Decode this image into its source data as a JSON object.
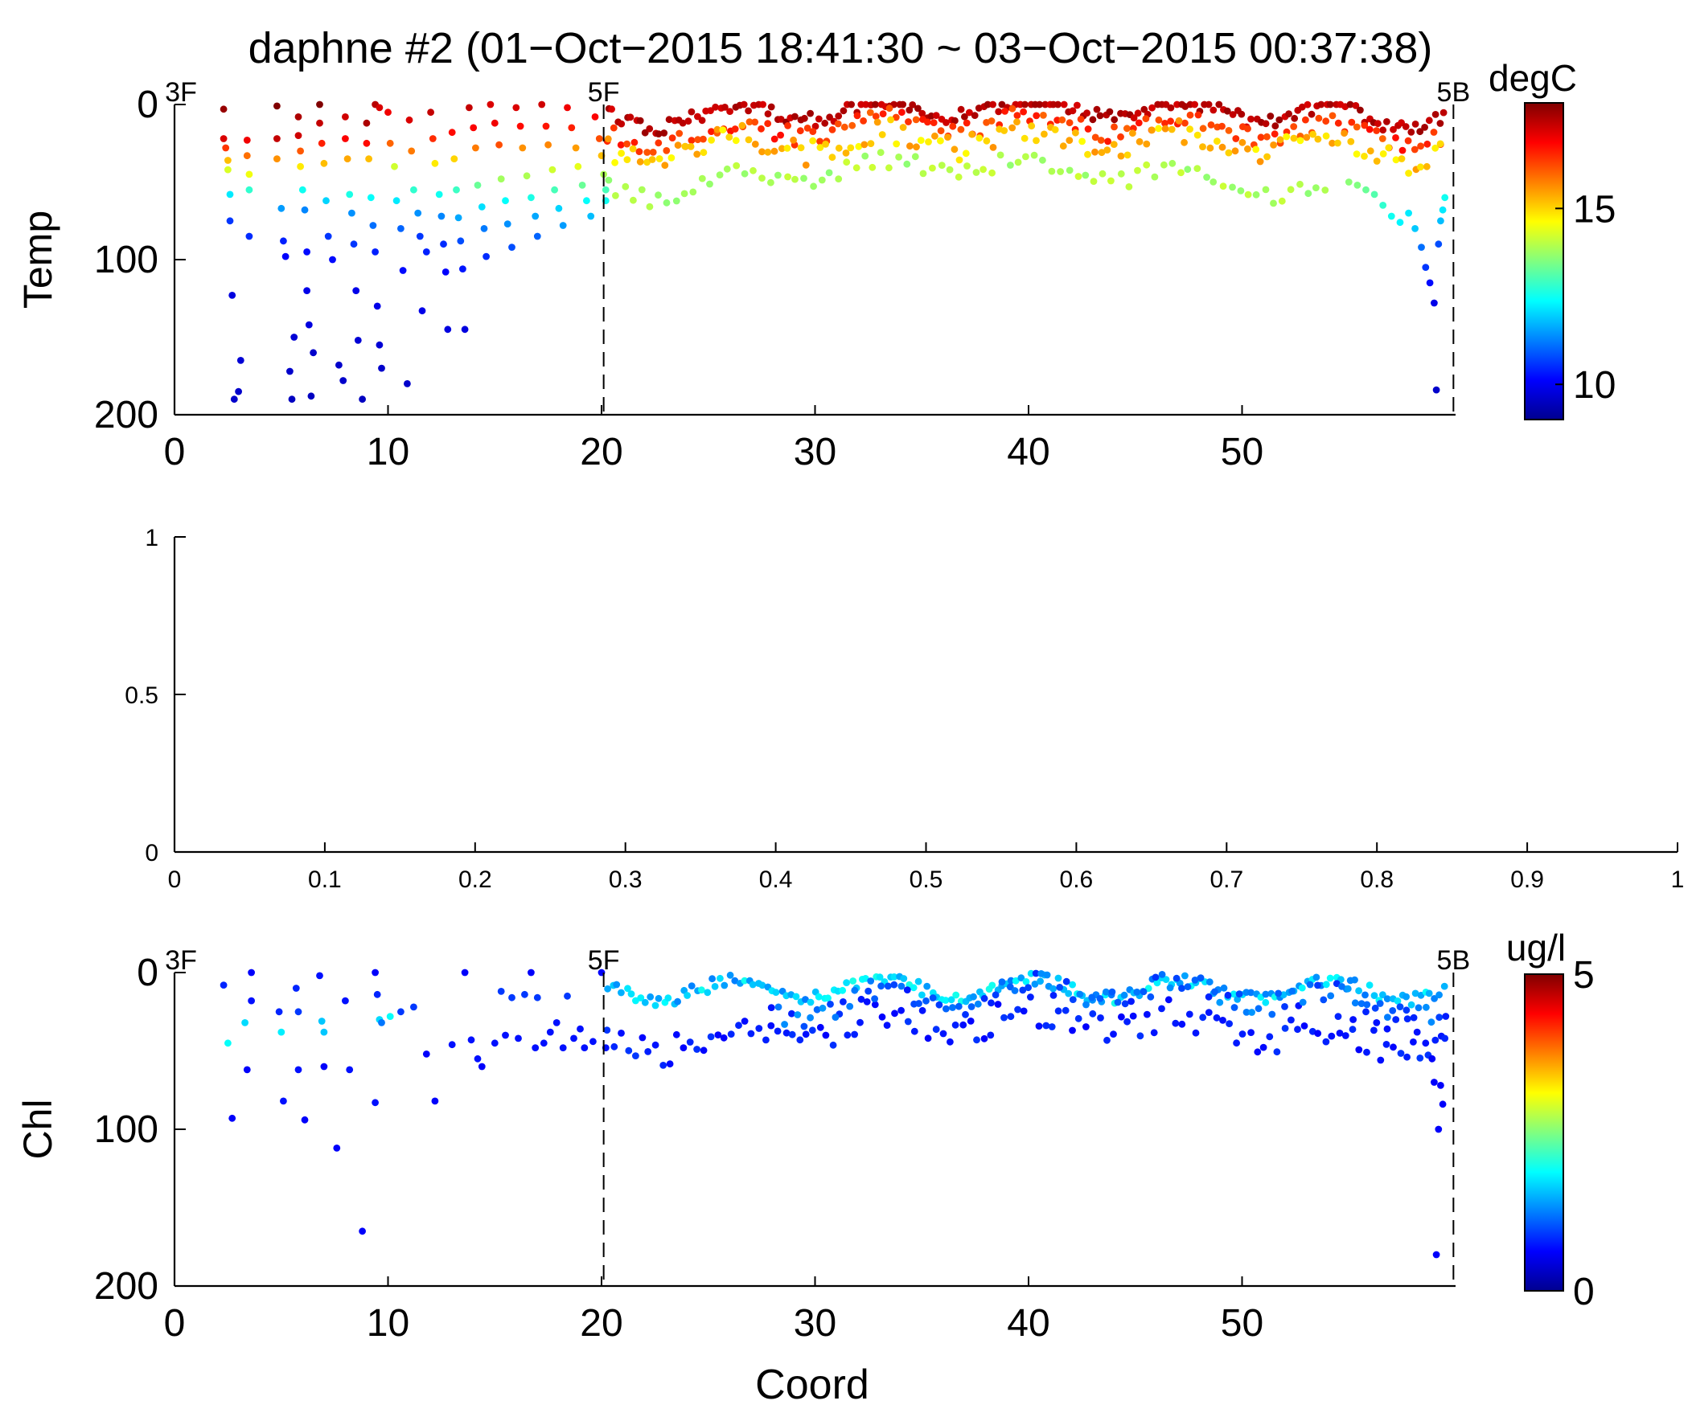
{
  "figure": {
    "title": "daphne #2 (01−Oct−2015 18:41:30 ~ 03−Oct−2015 00:37:38)"
  },
  "colormap": [
    "#00008f",
    "#0000ff",
    "#0080ff",
    "#00ffff",
    "#80ff80",
    "#ffff00",
    "#ff8000",
    "#ff0000",
    "#800000"
  ],
  "chart_data": [
    {
      "type": "scatter",
      "ylabel": "Temp",
      "xlabel": "",
      "xlim": [
        0,
        60
      ],
      "ylim": [
        200,
        0
      ],
      "xticks": [
        0,
        10,
        20,
        30,
        40,
        50
      ],
      "yticks": [
        0,
        100,
        200
      ],
      "colorbar": {
        "unit": "degC",
        "range": [
          9,
          18
        ],
        "ticks": [
          10,
          15
        ]
      },
      "stations": [
        {
          "label": "3F",
          "x": 0
        },
        {
          "label": "5F",
          "x": 20.1
        },
        {
          "label": "5B",
          "x": 59.9
        }
      ],
      "scatter_note": "points: x = Coord, y = depth; colour = temperature (degC)",
      "points": [
        [
          2.3,
          3,
          17.8
        ],
        [
          2.3,
          22,
          17.2
        ],
        [
          2.4,
          28,
          16.4
        ],
        [
          2.5,
          36,
          15.2
        ],
        [
          2.5,
          42,
          14.3
        ],
        [
          2.6,
          58,
          12.2
        ],
        [
          2.6,
          75,
          10.6
        ],
        [
          2.7,
          123,
          9.8
        ],
        [
          2.8,
          190,
          9.6
        ],
        [
          3.0,
          185,
          9.6
        ],
        [
          3.1,
          165,
          9.7
        ],
        [
          3.4,
          23,
          17.0
        ],
        [
          3.4,
          33,
          15.9
        ],
        [
          3.5,
          45,
          14.5
        ],
        [
          3.5,
          55,
          12.8
        ],
        [
          3.5,
          85,
          10.5
        ],
        [
          4.8,
          1,
          18.0
        ],
        [
          4.8,
          22,
          17.4
        ],
        [
          4.8,
          35,
          15.6
        ],
        [
          5.0,
          67,
          11.5
        ],
        [
          5.1,
          88,
          10.4
        ],
        [
          5.2,
          98,
          10.1
        ],
        [
          5.4,
          172,
          9.6
        ],
        [
          5.5,
          190,
          9.5
        ],
        [
          5.6,
          150,
          9.7
        ],
        [
          5.8,
          8,
          17.6
        ],
        [
          5.8,
          20,
          17.3
        ],
        [
          5.9,
          30,
          16.1
        ],
        [
          5.9,
          40,
          14.8
        ],
        [
          6.0,
          55,
          12.5
        ],
        [
          6.1,
          68,
          11.3
        ],
        [
          6.2,
          95,
          10.2
        ],
        [
          6.2,
          120,
          9.9
        ],
        [
          6.3,
          142,
          9.8
        ],
        [
          6.4,
          188,
          9.5
        ],
        [
          6.5,
          160,
          9.6
        ],
        [
          6.8,
          -2,
          18.1
        ],
        [
          6.8,
          12,
          17.4
        ],
        [
          6.9,
          25,
          16.6
        ],
        [
          7.0,
          38,
          15.2
        ],
        [
          7.1,
          62,
          12.0
        ],
        [
          7.2,
          85,
          10.6
        ],
        [
          7.4,
          100,
          10.2
        ],
        [
          7.7,
          168,
          9.6
        ],
        [
          7.9,
          178,
          9.6
        ],
        [
          8.0,
          8,
          17.3
        ],
        [
          8.0,
          22,
          16.9
        ],
        [
          8.1,
          35,
          15.4
        ],
        [
          8.2,
          58,
          12.6
        ],
        [
          8.3,
          70,
          11.4
        ],
        [
          8.4,
          90,
          10.6
        ],
        [
          8.5,
          120,
          9.9
        ],
        [
          8.6,
          152,
          9.7
        ],
        [
          8.8,
          190,
          9.5
        ],
        [
          9.0,
          12,
          17.6
        ],
        [
          9.0,
          25,
          16.8
        ],
        [
          9.1,
          35,
          15.2
        ],
        [
          9.2,
          60,
          12.4
        ],
        [
          9.3,
          78,
          11.1
        ],
        [
          9.4,
          95,
          10.4
        ],
        [
          9.5,
          130,
          9.9
        ],
        [
          9.6,
          155,
          9.7
        ],
        [
          9.7,
          170,
          9.6
        ],
        [
          9.4,
          -1,
          17.5
        ],
        [
          9.6,
          2,
          17.2
        ],
        [
          10.0,
          5,
          17.0
        ],
        [
          10.1,
          25,
          16.0
        ],
        [
          10.3,
          40,
          14.2
        ],
        [
          10.4,
          62,
          12.2
        ],
        [
          10.6,
          80,
          11.0
        ],
        [
          10.7,
          107,
          10.2
        ],
        [
          10.9,
          180,
          9.6
        ],
        [
          11.0,
          10,
          17.2
        ],
        [
          11.1,
          30,
          15.8
        ],
        [
          11.2,
          55,
          12.8
        ],
        [
          11.4,
          70,
          11.4
        ],
        [
          11.5,
          85,
          10.6
        ],
        [
          11.6,
          133,
          9.9
        ],
        [
          11.8,
          95,
          10.4
        ],
        [
          12.0,
          5,
          17.4
        ],
        [
          12.1,
          22,
          16.5
        ],
        [
          12.2,
          38,
          14.8
        ],
        [
          12.4,
          58,
          12.5
        ],
        [
          12.5,
          72,
          11.3
        ],
        [
          12.6,
          90,
          10.5
        ],
        [
          12.7,
          108,
          10.1
        ],
        [
          12.8,
          145,
          9.8
        ],
        [
          13.0,
          18,
          16.8
        ],
        [
          13.1,
          35,
          15.0
        ],
        [
          13.2,
          55,
          12.9
        ],
        [
          13.3,
          73,
          11.6
        ],
        [
          13.4,
          88,
          10.8
        ],
        [
          13.5,
          106,
          10.3
        ],
        [
          13.6,
          145,
          9.8
        ],
        [
          13.8,
          2,
          17.4
        ],
        [
          14.0,
          15,
          16.9
        ],
        [
          14.1,
          28,
          15.8
        ],
        [
          14.2,
          52,
          13.3
        ],
        [
          14.4,
          66,
          12.1
        ],
        [
          14.5,
          80,
          11.2
        ],
        [
          14.6,
          98,
          10.5
        ],
        [
          14.8,
          0,
          17.2
        ],
        [
          15.0,
          12,
          17.0
        ],
        [
          15.2,
          26,
          16.2
        ],
        [
          15.3,
          48,
          13.8
        ],
        [
          15.5,
          62,
          12.4
        ],
        [
          15.6,
          77,
          11.4
        ],
        [
          15.8,
          92,
          10.8
        ],
        [
          16.0,
          2,
          17.2
        ],
        [
          16.2,
          14,
          16.8
        ],
        [
          16.3,
          28,
          15.6
        ],
        [
          16.5,
          46,
          13.9
        ],
        [
          16.7,
          60,
          12.6
        ],
        [
          16.9,
          72,
          11.6
        ],
        [
          17.0,
          85,
          11.0
        ],
        [
          17.2,
          0,
          17.3
        ],
        [
          17.4,
          14,
          16.7
        ],
        [
          17.5,
          26,
          15.7
        ],
        [
          17.7,
          42,
          14.2
        ],
        [
          17.8,
          55,
          13.0
        ],
        [
          18.0,
          67,
          12.0
        ],
        [
          18.2,
          78,
          11.5
        ],
        [
          18.4,
          2,
          17.0
        ],
        [
          18.6,
          15,
          16.6
        ],
        [
          18.8,
          28,
          15.5
        ],
        [
          18.9,
          40,
          14.4
        ],
        [
          19.1,
          52,
          13.3
        ],
        [
          19.3,
          62,
          12.4
        ],
        [
          19.5,
          72,
          11.8
        ],
        [
          19.7,
          8,
          16.9
        ],
        [
          19.9,
          22,
          16.2
        ],
        [
          20.0,
          33,
          15.2
        ],
        [
          20.1,
          45,
          13.9
        ],
        [
          20.2,
          55,
          13.0
        ],
        [
          20.2,
          62,
          12.5
        ]
      ],
      "bands": [
        {
          "from": 20.3,
          "to": 59.5,
          "depth": [
            10,
            2,
            14
          ],
          "value": [
            17.2,
            17.8
          ],
          "step": 0.22,
          "jitter": 5
        },
        {
          "from": 20.3,
          "to": 59.5,
          "depth": [
            22,
            12,
            24
          ],
          "value": [
            16.0,
            16.8
          ],
          "step": 0.3,
          "jitter": 6
        },
        {
          "from": 20.3,
          "to": 59.5,
          "depth": [
            32,
            22,
            30
          ],
          "value": [
            14.6,
            15.6
          ],
          "step": 0.3,
          "jitter": 8
        },
        {
          "from": 20.3,
          "to": 54.0,
          "depth": [
            58,
            40,
            40
          ],
          "value": [
            13.6,
            14.2
          ],
          "step": 0.4,
          "jitter": 6
        }
      ],
      "tail_points": [
        [
          55.0,
          50,
          13.6
        ],
        [
          55.4,
          52,
          13.5
        ],
        [
          55.8,
          55,
          13.3
        ],
        [
          56.2,
          58,
          13.1
        ],
        [
          56.6,
          65,
          12.8
        ],
        [
          57.0,
          72,
          12.5
        ],
        [
          57.4,
          76,
          12.3
        ],
        [
          57.8,
          70,
          12.2
        ],
        [
          58.1,
          80,
          11.9
        ],
        [
          58.4,
          92,
          11.1
        ],
        [
          58.6,
          105,
          10.6
        ],
        [
          58.8,
          115,
          10.2
        ],
        [
          59.0,
          128,
          9.9
        ],
        [
          59.1,
          184,
          9.6
        ],
        [
          59.2,
          90,
          10.8
        ],
        [
          59.3,
          75,
          11.8
        ],
        [
          59.4,
          68,
          12.2
        ],
        [
          59.5,
          60,
          12.5
        ]
      ]
    },
    {
      "type": "scatter",
      "xlim": [
        0,
        1
      ],
      "ylim": [
        0,
        1
      ],
      "xticks": [
        0,
        0.1,
        0.2,
        0.3,
        0.4,
        0.5,
        0.6,
        0.7,
        0.8,
        0.9,
        1
      ],
      "yticks": [
        0,
        0.5,
        1
      ],
      "points": []
    },
    {
      "type": "scatter",
      "ylabel": "Chl",
      "xlabel": "Coord",
      "xlim": [
        0,
        60
      ],
      "ylim": [
        200,
        0
      ],
      "xticks": [
        0,
        10,
        20,
        30,
        40,
        50
      ],
      "yticks": [
        0,
        100,
        200
      ],
      "colorbar": {
        "unit": "ug/l",
        "range": [
          0,
          5
        ],
        "ticks": [
          0,
          5
        ]
      },
      "stations": [
        {
          "label": "3F",
          "x": 0
        },
        {
          "label": "5F",
          "x": 20.1
        },
        {
          "label": "5B",
          "x": 59.9
        }
      ],
      "scatter_note": "points: x = Coord, y = depth; colour = chlorophyll (ug/l)",
      "points": [
        [
          2.3,
          8,
          0.8
        ],
        [
          2.5,
          45,
          1.9
        ],
        [
          2.7,
          93,
          0.6
        ],
        [
          3.3,
          32,
          1.7
        ],
        [
          3.4,
          62,
          0.6
        ],
        [
          3.6,
          18,
          0.7
        ],
        [
          3.6,
          0,
          0.6
        ],
        [
          4.9,
          25,
          0.8
        ],
        [
          5.0,
          38,
          1.8
        ],
        [
          5.1,
          82,
          0.7
        ],
        [
          5.7,
          10,
          0.8
        ],
        [
          5.8,
          25,
          0.9
        ],
        [
          5.8,
          62,
          0.7
        ],
        [
          6.1,
          94,
          0.6
        ],
        [
          6.8,
          2,
          0.7
        ],
        [
          6.9,
          31,
          1.6
        ],
        [
          7.0,
          38,
          1.6
        ],
        [
          7.0,
          60,
          0.6
        ],
        [
          7.6,
          112,
          0.6
        ],
        [
          8.0,
          18,
          0.7
        ],
        [
          8.2,
          62,
          0.7
        ],
        [
          8.8,
          165,
          0.6
        ],
        [
          9.4,
          0,
          0.6
        ],
        [
          9.5,
          14,
          0.8
        ],
        [
          9.6,
          30,
          1.7
        ],
        [
          9.7,
          32,
          1.2
        ],
        [
          9.4,
          83,
          0.7
        ],
        [
          10.1,
          28,
          1.9
        ],
        [
          10.6,
          25,
          0.9
        ],
        [
          11.2,
          22,
          0.9
        ],
        [
          11.8,
          52,
          0.6
        ],
        [
          12.2,
          82,
          0.6
        ],
        [
          13.0,
          46,
          0.7
        ],
        [
          13.6,
          0,
          0.6
        ],
        [
          13.9,
          43,
          0.7
        ],
        [
          14.2,
          55,
          0.7
        ],
        [
          14.4,
          60,
          0.6
        ],
        [
          15.0,
          45,
          0.7
        ],
        [
          15.3,
          12,
          0.9
        ],
        [
          15.5,
          40,
          0.7
        ],
        [
          15.8,
          16,
          0.9
        ],
        [
          16.1,
          42,
          0.7
        ],
        [
          16.4,
          14,
          0.9
        ],
        [
          16.7,
          0,
          0.6
        ],
        [
          16.9,
          48,
          0.7
        ],
        [
          17.0,
          16,
          0.9
        ],
        [
          17.3,
          45,
          0.7
        ],
        [
          17.6,
          38,
          0.7
        ],
        [
          17.9,
          32,
          0.7
        ],
        [
          18.2,
          48,
          0.7
        ],
        [
          18.4,
          15,
          0.9
        ],
        [
          18.7,
          42,
          0.7
        ],
        [
          19.0,
          36,
          0.7
        ],
        [
          19.2,
          48,
          0.7
        ],
        [
          19.6,
          44,
          0.7
        ],
        [
          20.0,
          0,
          0.6
        ],
        [
          20.2,
          48,
          0.7
        ]
      ],
      "bands": [
        {
          "from": 20.3,
          "to": 59.5,
          "depth": [
            12,
            10,
            6
          ],
          "value": [
            1.2,
            2.0
          ],
          "step": 0.22,
          "jitter": 4
        },
        {
          "from": 20.3,
          "to": 59.5,
          "depth": [
            48,
            30,
            28
          ],
          "value": [
            0.6,
            0.9
          ],
          "step": 0.32,
          "jitter": 10
        },
        {
          "from": 28.0,
          "to": 59.5,
          "depth": [
            24,
            12,
            20
          ],
          "value": [
            0.7,
            1.4
          ],
          "step": 0.3,
          "jitter": 7
        }
      ],
      "tail_points": [
        [
          54.5,
          28,
          0.8
        ],
        [
          55.2,
          30,
          0.7
        ],
        [
          55.8,
          25,
          0.8
        ],
        [
          56.3,
          32,
          0.7
        ],
        [
          56.8,
          36,
          0.7
        ],
        [
          57.2,
          30,
          0.8
        ],
        [
          57.7,
          24,
          0.9
        ],
        [
          58.2,
          38,
          0.7
        ],
        [
          58.6,
          45,
          0.7
        ],
        [
          58.9,
          55,
          0.6
        ],
        [
          59.0,
          70,
          0.6
        ],
        [
          59.1,
          180,
          0.6
        ],
        [
          59.2,
          100,
          0.6
        ],
        [
          59.3,
          72,
          0.6
        ],
        [
          59.4,
          84,
          0.6
        ],
        [
          59.5,
          42,
          0.8
        ]
      ]
    }
  ]
}
